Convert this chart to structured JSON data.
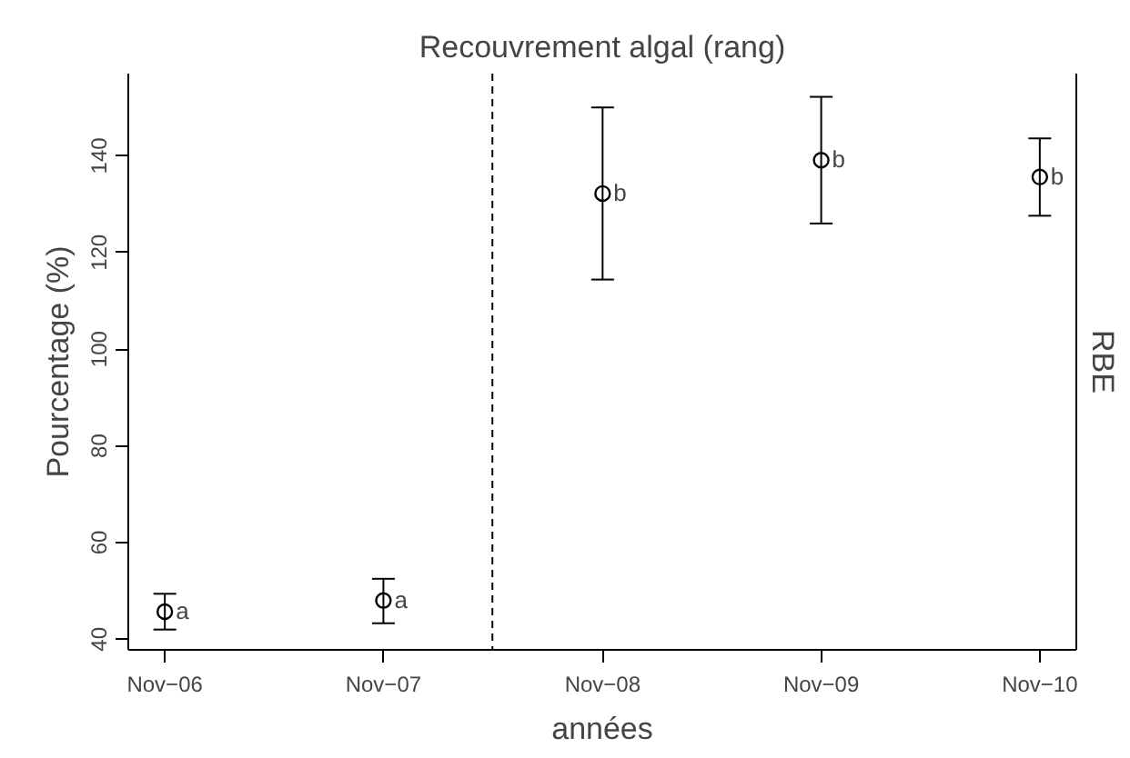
{
  "chart_data": {
    "type": "scatter",
    "title": "Recouvrement algal (rang)",
    "xlabel": "années",
    "ylabel": "Pourcentage (%)",
    "y2label": "RBE",
    "x": [
      "2006-11",
      "2007-11",
      "2008-11",
      "2009-11",
      "2010-11"
    ],
    "values": [
      45.7,
      48.0,
      132.2,
      139.1,
      135.6
    ],
    "errors": [
      [
        42.0,
        49.4
      ],
      [
        43.3,
        52.5
      ],
      [
        114.4,
        150.0
      ],
      [
        126.0,
        152.2
      ],
      [
        127.6,
        143.6
      ]
    ],
    "color": "#000000",
    "marker": "circle",
    "xlim": [
      "2006-09-01",
      "2011-01-01"
    ],
    "xticks": [
      {
        "value": "2006-11",
        "label": "Nov−06"
      },
      {
        "value": "2007-11",
        "label": "Nov−07"
      },
      {
        "value": "2008-11",
        "label": "Nov−08"
      },
      {
        "value": "2009-11",
        "label": "Nov−09"
      },
      {
        "value": "2010-11",
        "label": "Nov−10"
      }
    ],
    "ylim": [
      37.8,
      157
    ],
    "yticks": [
      40,
      60,
      80,
      100,
      120,
      140
    ],
    "ref_lines": [
      {
        "axis": "x",
        "value": "2008-05",
        "line_style": "dashed",
        "color": "#000000"
      }
    ],
    "annotations": [
      {
        "text": "a",
        "x": "2006-11",
        "y": 45.7
      },
      {
        "text": "a",
        "x": "2007-11",
        "y": 48.0
      },
      {
        "text": "b",
        "x": "2008-11",
        "y": 132.2
      },
      {
        "text": "b",
        "x": "2009-11",
        "y": 139.1
      },
      {
        "text": "b",
        "x": "2010-11",
        "y": 135.6
      }
    ],
    "grid": false
  }
}
